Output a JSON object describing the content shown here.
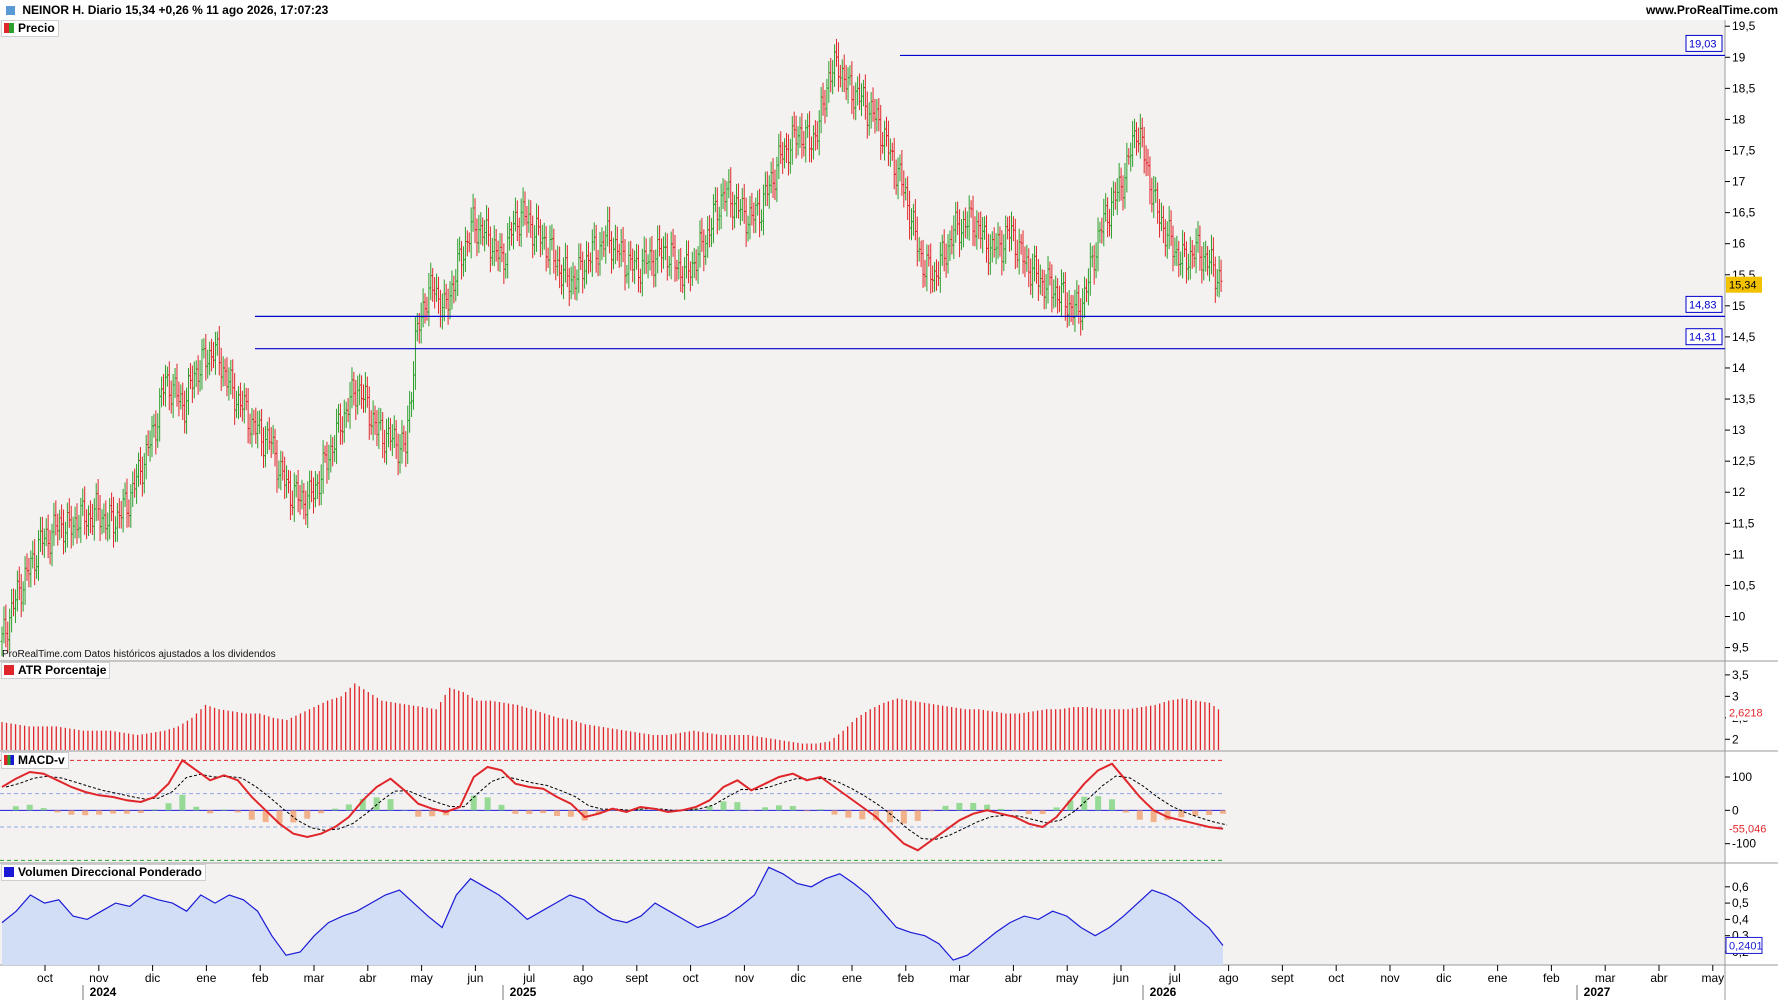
{
  "header": {
    "symbol": "NEINOR H.",
    "period": "Diario",
    "last": "15,34",
    "change": "+0,26 %",
    "date": "11 ago 2026",
    "time": "17:07:23",
    "site": "www.ProRealTime.com"
  },
  "panels": {
    "price_label": "Precio",
    "atr_label": "ATR Porcentaje",
    "macd_label": "MACD-v",
    "vol_label": "Volumen Direccional Ponderado"
  },
  "footnote": "ProRealTime.com Datos históricos ajustados a los dividendos",
  "colors": {
    "up": "#2ca02c",
    "down": "#e0262a",
    "line_blue": "#0000cc",
    "atr_bar": "#e0262a",
    "macd_line": "#e0262a",
    "vol_fill": "#d2def5",
    "vol_line": "#1a1ad6",
    "last_tag": "#f2c200"
  },
  "chart_data": [
    {
      "type": "bar",
      "name": "Precio",
      "candles_ohlc": "daily OHLC",
      "closes": [
        9.6,
        10.1,
        10.5,
        10.8,
        11.2,
        11.3,
        11.5,
        11.4,
        11.6,
        11.6,
        11.7,
        11.5,
        11.6,
        11.8,
        12.2,
        12.6,
        13.1,
        13.8,
        13.6,
        13.4,
        13.9,
        14.1,
        14.3,
        14.0,
        13.6,
        13.4,
        13.1,
        12.9,
        12.8,
        12.3,
        12.0,
        11.9,
        11.9,
        12.2,
        12.6,
        13.0,
        13.4,
        13.7,
        13.4,
        13.0,
        12.9,
        12.8,
        12.7,
        14.4,
        15.1,
        15.3,
        14.9,
        15.4,
        15.9,
        16.3,
        16.2,
        16.0,
        15.7,
        16.2,
        16.5,
        16.3,
        16.1,
        15.9,
        15.6,
        15.4,
        15.5,
        15.8,
        15.9,
        16.1,
        15.9,
        15.7,
        15.6,
        15.7,
        15.8,
        15.9,
        15.7,
        15.5,
        15.7,
        16.0,
        16.4,
        16.8,
        16.7,
        16.5,
        16.4,
        16.6,
        17.0,
        17.4,
        17.6,
        17.8,
        17.6,
        17.9,
        18.7,
        18.9,
        18.5,
        18.4,
        18.2,
        18.0,
        17.6,
        17.2,
        16.8,
        16.1,
        15.6,
        15.5,
        15.8,
        16.2,
        16.3,
        16.4,
        16.1,
        15.9,
        16.0,
        16.2,
        15.8,
        15.6,
        15.4,
        15.3,
        15.2,
        15.0,
        14.9,
        15.4,
        16.1,
        16.5,
        16.8,
        17.2,
        17.9,
        17.3,
        16.6,
        16.2,
        15.9,
        15.7,
        15.9,
        15.8,
        15.6,
        15.34
      ],
      "series": [
        {
          "name": "Precio",
          "values_note": "close approximations"
        }
      ],
      "levels": [
        19.03,
        14.83,
        14.31
      ],
      "level_labels": [
        "19,03",
        "14,83",
        "14,31"
      ],
      "last_value": "15,34",
      "y_ticks": [
        "9,5",
        "10",
        "10,5",
        "11",
        "11,5",
        "12",
        "12,5",
        "13",
        "13,5",
        "14",
        "14,5",
        "15",
        "15,5",
        "16",
        "16,5",
        "17",
        "17,5",
        "18",
        "18,5",
        "19",
        "19,5"
      ],
      "ylim": [
        9.3,
        19.6
      ]
    },
    {
      "type": "bar",
      "name": "ATR Porcentaje",
      "values": [
        2.4,
        2.35,
        2.3,
        2.3,
        2.3,
        2.25,
        2.2,
        2.2,
        2.2,
        2.15,
        2.1,
        2.15,
        2.2,
        2.3,
        2.5,
        2.8,
        2.7,
        2.65,
        2.6,
        2.6,
        2.5,
        2.45,
        2.6,
        2.75,
        2.9,
        3.0,
        3.3,
        3.1,
        2.9,
        2.85,
        2.8,
        2.75,
        2.7,
        3.2,
        3.1,
        2.9,
        2.9,
        2.85,
        2.8,
        2.7,
        2.6,
        2.5,
        2.45,
        2.35,
        2.3,
        2.25,
        2.2,
        2.15,
        2.1,
        2.1,
        2.15,
        2.2,
        2.15,
        2.1,
        2.1,
        2.1,
        2.05,
        2.0,
        1.95,
        1.9,
        1.9,
        1.95,
        2.2,
        2.5,
        2.7,
        2.85,
        2.95,
        2.9,
        2.85,
        2.8,
        2.75,
        2.7,
        2.7,
        2.65,
        2.6,
        2.6,
        2.65,
        2.7,
        2.7,
        2.75,
        2.75,
        2.7,
        2.7,
        2.7,
        2.75,
        2.8,
        2.9,
        2.95,
        2.9,
        2.85,
        2.62
      ],
      "last_value": "2,6218",
      "y_ticks": [
        "2",
        "2,5",
        "3",
        "3,5"
      ],
      "ylim": [
        1.75,
        3.8
      ]
    },
    {
      "type": "line",
      "name": "MACD-v",
      "values": [
        70,
        95,
        115,
        110,
        90,
        70,
        55,
        45,
        40,
        30,
        25,
        40,
        80,
        150,
        120,
        90,
        105,
        90,
        40,
        0,
        -40,
        -70,
        -80,
        -70,
        -50,
        -20,
        30,
        70,
        95,
        60,
        20,
        5,
        -5,
        10,
        100,
        130,
        120,
        80,
        70,
        65,
        40,
        20,
        -20,
        -10,
        5,
        -5,
        10,
        5,
        -5,
        0,
        10,
        30,
        70,
        90,
        60,
        80,
        100,
        110,
        90,
        100,
        70,
        40,
        10,
        -20,
        -60,
        -100,
        -120,
        -90,
        -60,
        -30,
        -10,
        0,
        -10,
        -20,
        -40,
        -50,
        -20,
        30,
        80,
        120,
        140,
        90,
        40,
        0,
        -20,
        -30,
        -40,
        -50,
        -55
      ],
      "last_value": "-55,046",
      "y_ticks": [
        "-100",
        "0",
        "100"
      ],
      "ylim": [
        -155,
        175
      ],
      "dashed_levels": [
        150,
        50,
        -50,
        -150
      ]
    },
    {
      "type": "area",
      "name": "Volumen Direccional Ponderado",
      "values": [
        0.38,
        0.45,
        0.55,
        0.5,
        0.52,
        0.42,
        0.4,
        0.45,
        0.5,
        0.48,
        0.55,
        0.52,
        0.5,
        0.45,
        0.55,
        0.5,
        0.55,
        0.52,
        0.45,
        0.3,
        0.18,
        0.2,
        0.3,
        0.38,
        0.42,
        0.45,
        0.5,
        0.55,
        0.58,
        0.5,
        0.42,
        0.35,
        0.55,
        0.65,
        0.6,
        0.55,
        0.48,
        0.4,
        0.45,
        0.5,
        0.55,
        0.52,
        0.45,
        0.4,
        0.38,
        0.42,
        0.5,
        0.45,
        0.4,
        0.35,
        0.38,
        0.42,
        0.48,
        0.55,
        0.72,
        0.68,
        0.62,
        0.6,
        0.65,
        0.68,
        0.62,
        0.55,
        0.45,
        0.35,
        0.32,
        0.3,
        0.25,
        0.15,
        0.18,
        0.25,
        0.32,
        0.38,
        0.42,
        0.4,
        0.45,
        0.42,
        0.35,
        0.3,
        0.35,
        0.42,
        0.5,
        0.58,
        0.55,
        0.5,
        0.42,
        0.35,
        0.24
      ],
      "last_value": "0,2401",
      "y_ticks": [
        "0,2",
        "0,3",
        "0,4",
        "0,5",
        "0,6"
      ],
      "ylim": [
        0.12,
        0.74
      ]
    }
  ],
  "time_axis": {
    "months": [
      "oct",
      "nov",
      "dic",
      "ene",
      "feb",
      "mar",
      "abr",
      "may",
      "jun",
      "jul",
      "ago",
      "sept",
      "oct",
      "nov",
      "dic",
      "ene",
      "feb",
      "mar",
      "abr",
      "may",
      "jun",
      "jul",
      "ago",
      "sept",
      "oct",
      "nov",
      "dic",
      "ene",
      "feb",
      "mar",
      "abr",
      "may"
    ],
    "years": [
      "2024",
      "2025",
      "2026",
      "2027"
    ]
  }
}
